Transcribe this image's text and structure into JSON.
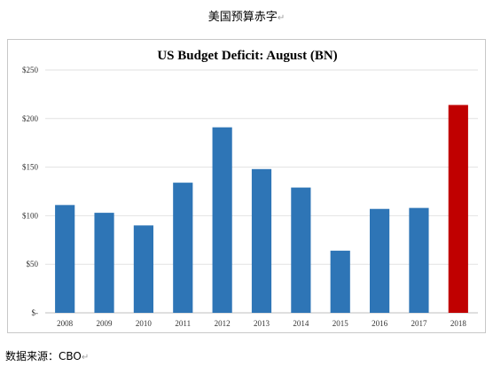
{
  "page_title": "美国预算赤字",
  "source_note": "数据来源：CBO",
  "chart_data": {
    "type": "bar",
    "title": "US Budget Deficit: August (BN)",
    "xlabel": "",
    "ylabel": "",
    "categories": [
      "2008",
      "2009",
      "2010",
      "2011",
      "2012",
      "2013",
      "2014",
      "2015",
      "2016",
      "2017",
      "2018"
    ],
    "values": [
      111,
      103,
      90,
      134,
      191,
      148,
      129,
      64,
      107,
      108,
      214
    ],
    "bar_colors": [
      "#2e75b6",
      "#2e75b6",
      "#2e75b6",
      "#2e75b6",
      "#2e75b6",
      "#2e75b6",
      "#2e75b6",
      "#2e75b6",
      "#2e75b6",
      "#2e75b6",
      "#c00000"
    ],
    "ylim": [
      0,
      250
    ],
    "y_ticks": [
      0,
      50,
      100,
      150,
      200,
      250
    ],
    "y_tick_labels": [
      "$-",
      "$50",
      "$100",
      "$150",
      "$200",
      "$250"
    ],
    "grid": true,
    "legend": "none"
  }
}
